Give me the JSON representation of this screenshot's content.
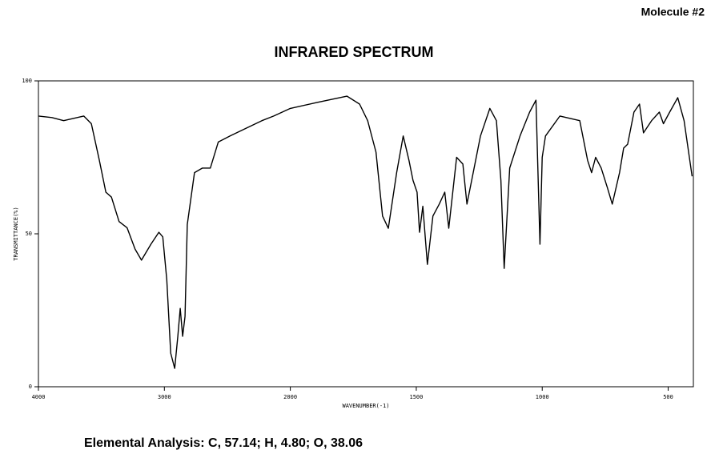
{
  "chart_data": {
    "type": "line",
    "title": "INFRARED SPECTRUM",
    "annotations": [
      "Molecule #2",
      "Elemental Analysis: C, 57.14; H, 4.80; O, 38.06"
    ],
    "x_label": "WAVENUMBER(-1)",
    "y_label": "TRANSMITTANCE(%)",
    "color": "#000000",
    "x": [
      4000,
      3893,
      3800,
      3640,
      3580,
      3516,
      3465,
      3420,
      3360,
      3296,
      3233,
      3182,
      3107,
      3044,
      3013,
      2981,
      2950,
      2918,
      2893,
      2874,
      2855,
      2836,
      2818,
      2761,
      2698,
      2635,
      2572,
      2478,
      2352,
      2226,
      2132,
      2000,
      1890,
      1775,
      1725,
      1693,
      1660,
      1634,
      1611,
      1578,
      1552,
      1529,
      1513,
      1497,
      1487,
      1474,
      1456,
      1434,
      1409,
      1387,
      1371,
      1340,
      1315,
      1299,
      1277,
      1245,
      1208,
      1182,
      1164,
      1151,
      1129,
      1088,
      1050,
      1025,
      1009,
      1000,
      987,
      930,
      851,
      820,
      804,
      788,
      766,
      741,
      722,
      693,
      677,
      661,
      636,
      614,
      598,
      566,
      535,
      519,
      494,
      462,
      437,
      405
    ],
    "values": [
      88.5,
      88,
      87,
      88.5,
      86,
      74,
      63.6,
      62,
      54,
      52,
      45,
      41.4,
      46.6,
      50.5,
      49,
      35,
      11,
      6,
      16.5,
      25.6,
      16.5,
      23,
      53,
      70,
      71.5,
      71.5,
      80,
      82,
      84.5,
      87,
      88.5,
      91,
      93,
      95,
      92.4,
      87,
      76.7,
      55.8,
      51.8,
      70,
      82,
      74,
      67.5,
      63.6,
      50.5,
      59,
      40,
      55.8,
      59.7,
      63.6,
      51.8,
      75,
      72.8,
      59.7,
      68.8,
      82,
      91,
      87,
      67.5,
      38.7,
      71.5,
      82,
      89.8,
      93.7,
      46.6,
      75,
      82,
      88.5,
      87,
      74,
      70,
      75,
      71.5,
      65,
      59.7,
      70,
      78,
      79.3,
      89.8,
      92.4,
      83,
      87,
      89.8,
      86,
      89.8,
      94.5,
      87,
      68.8
    ],
    "xlim": [
      4000,
      400
    ],
    "xticks": [
      4000,
      3000,
      2000,
      1500,
      1000,
      500
    ],
    "ylim": [
      0,
      100
    ],
    "yticks": [
      0,
      50,
      100
    ]
  }
}
